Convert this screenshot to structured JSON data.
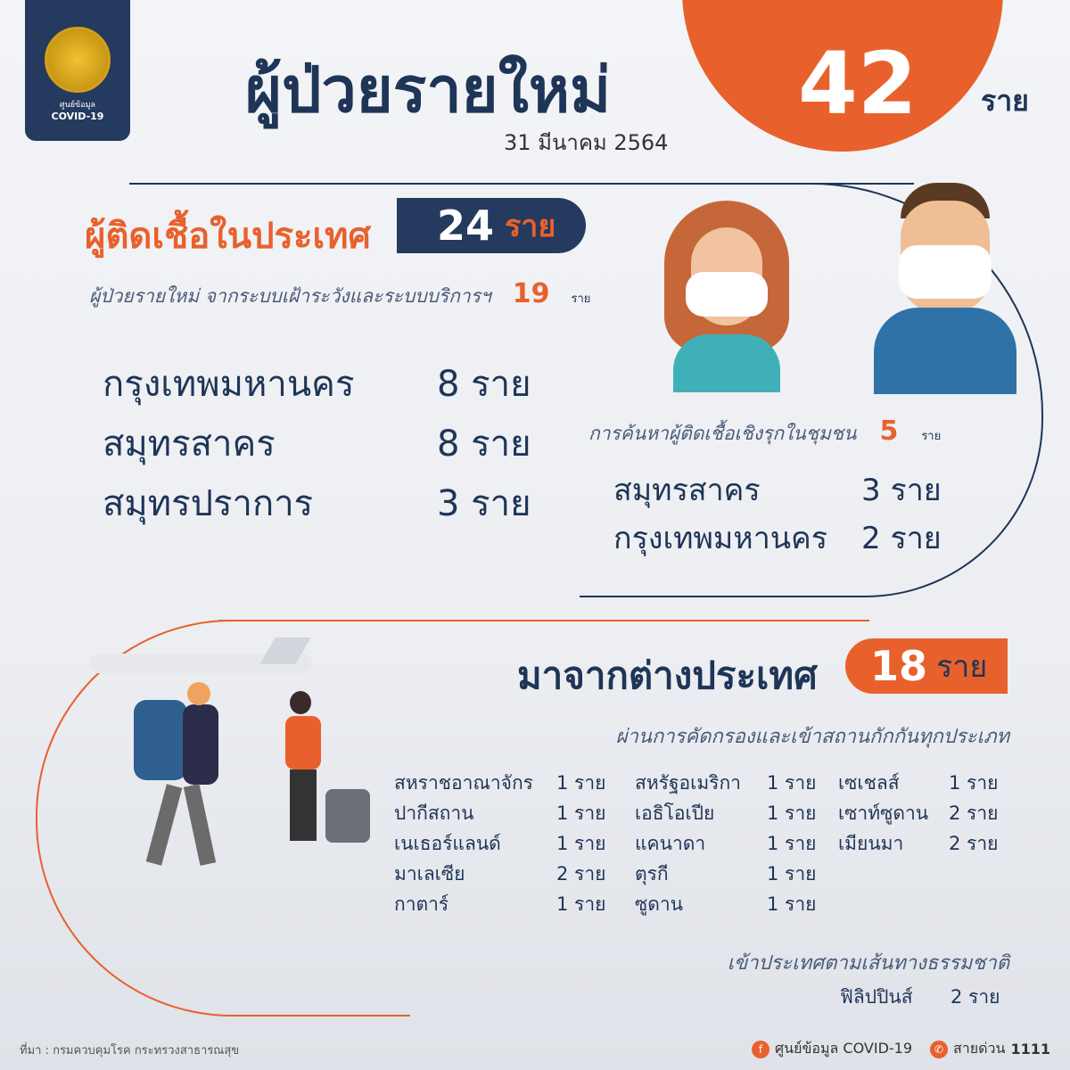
{
  "logo": {
    "line1": "ศูนย์ข้อมูล",
    "line2": "COVID-19"
  },
  "header": {
    "title": "ผู้ป่วยรายใหม่",
    "date": "31 มีนาคม 2564",
    "total": "42",
    "unit": "ราย"
  },
  "domestic": {
    "title": "ผู้ติดเชื้อในประเทศ",
    "count": "24",
    "unit": "ราย",
    "surveillance": {
      "label": "ผู้ป่วยรายใหม่ จากระบบเฝ้าระวังและระบบบริการฯ",
      "count": "19",
      "unit": "ราย",
      "items": [
        {
          "place": "กรุงเทพมหานคร",
          "count": "8 ราย"
        },
        {
          "place": "สมุทรสาคร",
          "count": "8 ราย"
        },
        {
          "place": "สมุทรปราการ",
          "count": "3 ราย"
        }
      ]
    },
    "active": {
      "label": "การค้นหาผู้ติดเชื้อเชิงรุกในชุมชน",
      "count": "5",
      "unit": "ราย",
      "items": [
        {
          "place": "สมุทรสาคร",
          "count": "3 ราย"
        },
        {
          "place": "กรุงเทพมหานคร",
          "count": "2 ราย"
        }
      ]
    }
  },
  "international": {
    "title": "มาจากต่างประเทศ",
    "count": "18",
    "unit": "ราย",
    "quarantine_label": "ผ่านการคัดกรองและเข้าสถานกักกันทุกประเภท",
    "columns": [
      [
        {
          "c": "สหราชอาณาจักร",
          "n": "1 ราย"
        },
        {
          "c": "ปากีสถาน",
          "n": "1 ราย"
        },
        {
          "c": "เนเธอร์แลนด์",
          "n": "1 ราย"
        },
        {
          "c": "มาเลเซีย",
          "n": "2 ราย"
        },
        {
          "c": "กาตาร์",
          "n": "1 ราย"
        }
      ],
      [
        {
          "c": "สหรัฐอเมริกา",
          "n": "1 ราย"
        },
        {
          "c": "เอธิโอเปีย",
          "n": "1 ราย"
        },
        {
          "c": "แคนาดา",
          "n": "1 ราย"
        },
        {
          "c": "ตุรกี",
          "n": "1 ราย"
        },
        {
          "c": "ซูดาน",
          "n": "1 ราย"
        }
      ],
      [
        {
          "c": "เซเชลส์",
          "n": "1 ราย"
        },
        {
          "c": "เซาท์ซูดาน",
          "n": "2 ราย"
        },
        {
          "c": "เมียนมา",
          "n": "2 ราย"
        }
      ]
    ],
    "natural_label": "เข้าประเทศตามเส้นทางธรรมชาติ",
    "natural": {
      "c": "ฟิลิปปินส์",
      "n": "2 ราย"
    }
  },
  "footer": {
    "source": "ที่มา : กรมควบคุมโรค กระทรวงสาธารณสุข",
    "facebook": "ศูนย์ข้อมูล COVID-19",
    "hotline_label": "สายด่วน",
    "hotline": "1111",
    "fb_icon": "f",
    "phone_icon": "✆"
  },
  "colors": {
    "navy": "#1f3557",
    "orange": "#e8612c"
  }
}
